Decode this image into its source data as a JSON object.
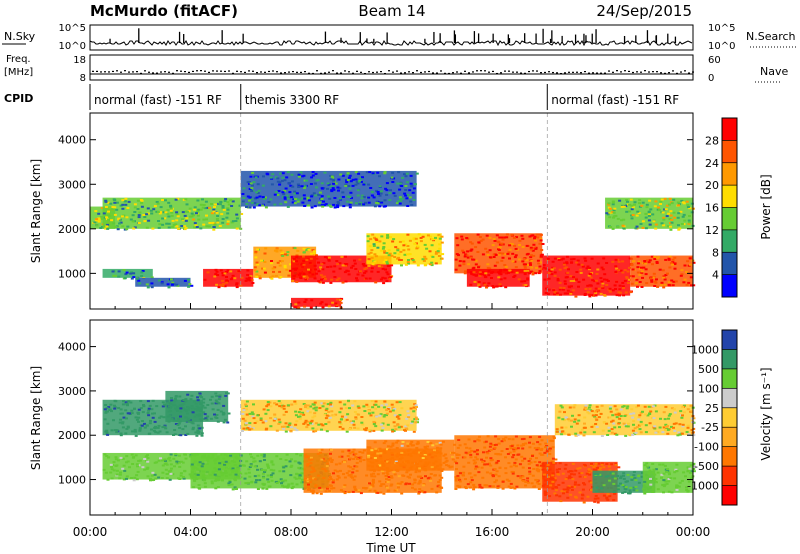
{
  "header": {
    "title_left": "McMurdo (fitACF)",
    "title_center": "Beam 14",
    "title_right": "24/Sep/2015"
  },
  "noise_panel": {
    "left_label": "N.Sky",
    "right_label": "N.Search",
    "left_ticks": [
      "10^5",
      "10^0"
    ],
    "right_ticks": [
      "10^5",
      "10^0"
    ]
  },
  "freq_panel": {
    "left_label_1": "Freq.",
    "left_label_2": "[MHz]",
    "right_label": "Nave",
    "left_ticks": [
      "18",
      "8"
    ],
    "right_ticks": [
      "60",
      "0"
    ]
  },
  "cpid": {
    "label": "CPID",
    "segments": [
      {
        "text": "normal (fast) -151 RF",
        "start_hour": 0.0
      },
      {
        "text": "themis 3300 RF",
        "start_hour": 6.0
      },
      {
        "text": "normal (fast) -151 RF",
        "start_hour": 18.2
      }
    ]
  },
  "power_colorbar": {
    "label": "Power [dB]",
    "ticks": [
      "28",
      "24",
      "20",
      "16",
      "12",
      "8",
      "4"
    ],
    "colors": [
      "#ff0000",
      "#ff5500",
      "#ff9900",
      "#ffdd00",
      "#66cc33",
      "#33aa66",
      "#2255aa",
      "#0000ff"
    ]
  },
  "velocity_colorbar": {
    "label": "Velocity [m s⁻¹]",
    "ticks": [
      "1000",
      "500",
      "100",
      "25",
      "-25",
      "-100",
      "-500",
      "-1000"
    ],
    "colors": [
      "#2244aa",
      "#339966",
      "#66cc33",
      "#cccccc",
      "#ffcc33",
      "#ffaa22",
      "#ff7700",
      "#ff3300",
      "#ff0000"
    ]
  },
  "chart_data": [
    {
      "type": "heatmap",
      "title": "Power",
      "xlabel": "",
      "ylabel": "Slant Range [km]",
      "xlim": [
        0,
        24
      ],
      "ylim": [
        200,
        4600
      ],
      "y_ticks": [
        "1000",
        "2000",
        "3000",
        "4000"
      ],
      "clim": [
        0,
        30
      ],
      "regions": [
        {
          "x": [
            0.0,
            1.0
          ],
          "y": [
            2000,
            2500
          ],
          "value": 14
        },
        {
          "x": [
            0.5,
            6.0
          ],
          "y": [
            2000,
            2700
          ],
          "value": 12
        },
        {
          "x": [
            0.5,
            2.5
          ],
          "y": [
            900,
            1100
          ],
          "value": 10
        },
        {
          "x": [
            1.8,
            4.0
          ],
          "y": [
            700,
            900
          ],
          "value": 6
        },
        {
          "x": [
            4.5,
            6.5
          ],
          "y": [
            700,
            1100
          ],
          "value": 28
        },
        {
          "x": [
            6.5,
            9.0
          ],
          "y": [
            900,
            1600
          ],
          "value": 20
        },
        {
          "x": [
            8.0,
            12.0
          ],
          "y": [
            800,
            1400
          ],
          "value": 28
        },
        {
          "x": [
            11.0,
            14.0
          ],
          "y": [
            1200,
            1900
          ],
          "value": 18
        },
        {
          "x": [
            8.0,
            10.0
          ],
          "y": [
            250,
            450
          ],
          "value": 28
        },
        {
          "x": [
            14.5,
            18.0
          ],
          "y": [
            1000,
            1900
          ],
          "value": 26
        },
        {
          "x": [
            15.0,
            17.5
          ],
          "y": [
            700,
            1100
          ],
          "value": 28
        },
        {
          "x": [
            18.0,
            21.5
          ],
          "y": [
            500,
            1400
          ],
          "value": 28
        },
        {
          "x": [
            21.5,
            24.0
          ],
          "y": [
            700,
            1400
          ],
          "value": 26
        },
        {
          "x": [
            20.5,
            24.0
          ],
          "y": [
            2000,
            2700
          ],
          "value": 14
        },
        {
          "x": [
            6.0,
            13.0
          ],
          "y": [
            2500,
            3300
          ],
          "value": 6
        }
      ]
    },
    {
      "type": "heatmap",
      "title": "Velocity",
      "xlabel": "Time UT",
      "ylabel": "Slant Range [km]",
      "xlim": [
        0,
        24
      ],
      "ylim": [
        200,
        4600
      ],
      "x_ticks": [
        "00:00",
        "04:00",
        "08:00",
        "12:00",
        "16:00",
        "20:00",
        "00:00"
      ],
      "y_ticks": [
        "1000",
        "2000",
        "3000",
        "4000"
      ],
      "clim": [
        -1000,
        1000
      ],
      "regions": [
        {
          "x": [
            0.5,
            4.5
          ],
          "y": [
            2000,
            2800
          ],
          "value": 800
        },
        {
          "x": [
            0.5,
            6.0
          ],
          "y": [
            1000,
            1600
          ],
          "value": 300
        },
        {
          "x": [
            3.0,
            5.5
          ],
          "y": [
            2300,
            3000
          ],
          "value": 900
        },
        {
          "x": [
            4.0,
            9.5
          ],
          "y": [
            800,
            1600
          ],
          "value": 400
        },
        {
          "x": [
            6.0,
            13.0
          ],
          "y": [
            2100,
            2800
          ],
          "value": 0
        },
        {
          "x": [
            8.5,
            14.0
          ],
          "y": [
            700,
            1700
          ],
          "value": -300
        },
        {
          "x": [
            11.0,
            14.5
          ],
          "y": [
            1200,
            1900
          ],
          "value": -200
        },
        {
          "x": [
            14.5,
            18.5
          ],
          "y": [
            800,
            2000
          ],
          "value": -400
        },
        {
          "x": [
            18.0,
            21.0
          ],
          "y": [
            500,
            1400
          ],
          "value": -600
        },
        {
          "x": [
            20.0,
            22.5
          ],
          "y": [
            700,
            1200
          ],
          "value": 600
        },
        {
          "x": [
            22.0,
            24.0
          ],
          "y": [
            700,
            1400
          ],
          "value": 300
        },
        {
          "x": [
            18.5,
            24.0
          ],
          "y": [
            2000,
            2700
          ],
          "value": 0
        }
      ]
    }
  ]
}
